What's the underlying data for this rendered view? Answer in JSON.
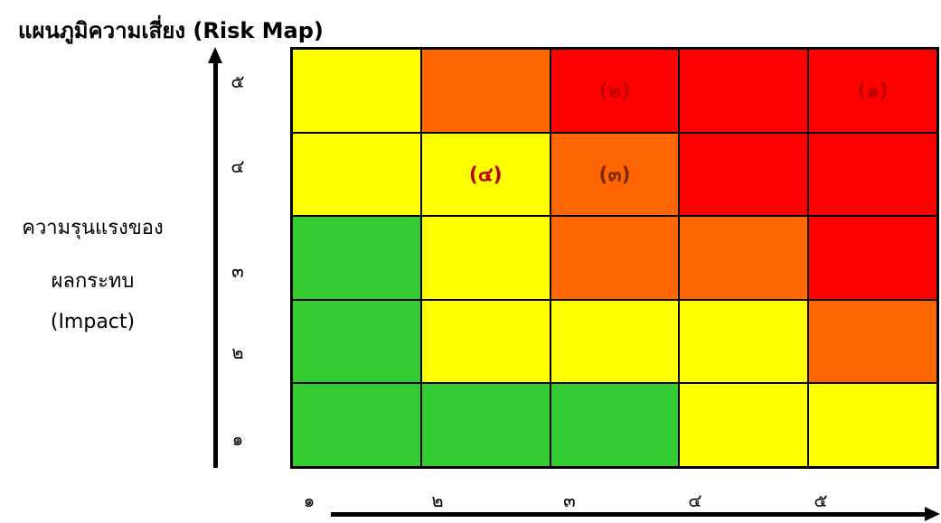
{
  "chart_data": {
    "type": "heatmap",
    "title": "แผนภูมิความเสี่ยง (Risk Map)",
    "ylabel_lines": [
      "ความรุนแรงของ",
      "ผลกระทบ",
      "(Impact)"
    ],
    "x_ticks": [
      "๑",
      "๒",
      "๓",
      "๔",
      "๕"
    ],
    "y_ticks": [
      "๑",
      "๒",
      "๓",
      "๔",
      "๕"
    ],
    "levels": {
      "green": "#33cc33",
      "yellow": "#ffff00",
      "orange": "#ff6600",
      "red": "#ff0000"
    },
    "rows_top_to_bottom": [
      [
        "yellow",
        "orange",
        "red",
        "red",
        "red"
      ],
      [
        "yellow",
        "yellow",
        "orange",
        "red",
        "red"
      ],
      [
        "green",
        "yellow",
        "orange",
        "orange",
        "red"
      ],
      [
        "green",
        "yellow",
        "yellow",
        "yellow",
        "orange"
      ],
      [
        "green",
        "green",
        "green",
        "yellow",
        "yellow"
      ]
    ],
    "points": [
      {
        "label": "(๑)",
        "x": 5,
        "y": 5,
        "color": "#c00000"
      },
      {
        "label": "(๒)",
        "x": 3,
        "y": 5,
        "color": "#c00000"
      },
      {
        "label": "(๓)",
        "x": 3,
        "y": 4,
        "color": "#7a2a00"
      },
      {
        "label": "(๔)",
        "x": 2,
        "y": 4,
        "color": "#c00000"
      }
    ]
  }
}
